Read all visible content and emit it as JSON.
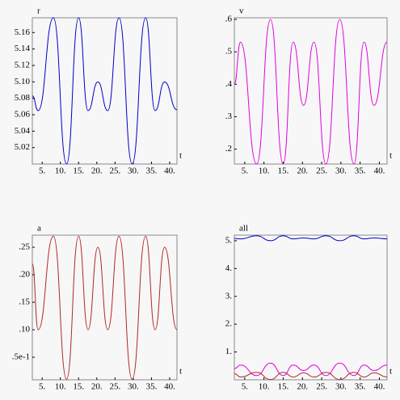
{
  "chart_data": [
    {
      "type": "line",
      "ylabel": "r",
      "xlabel": "t",
      "x": [
        2.3,
        3.9,
        8.1,
        11.7,
        15.0,
        17.6,
        20.3,
        23.0,
        26.1,
        29.7,
        33.4,
        36.0,
        38.6,
        42.0
      ],
      "series": [
        {
          "name": "r",
          "color": "#0000c8",
          "values": [
            5.083,
            5.065,
            5.178,
            5.0,
            5.178,
            5.065,
            5.1,
            5.065,
            5.178,
            5.0,
            5.178,
            5.065,
            5.1,
            5.066
          ]
        }
      ],
      "xlim": [
        2.3,
        42.0
      ],
      "ylim": [
        5.0,
        5.178
      ],
      "xticks": [
        {
          "value": 5,
          "label": "5."
        },
        {
          "value": 10,
          "label": "10."
        },
        {
          "value": 15,
          "label": "15."
        },
        {
          "value": 20,
          "label": "20."
        },
        {
          "value": 25,
          "label": "25."
        },
        {
          "value": 30,
          "label": "30."
        },
        {
          "value": 35,
          "label": "35."
        },
        {
          "value": 40,
          "label": "40."
        }
      ],
      "yticks": [
        5.02,
        5.04,
        5.06,
        5.08,
        {
          "value": 5.1,
          "label": "5.10"
        },
        5.12,
        5.14,
        5.16
      ]
    },
    {
      "type": "line",
      "ylabel": "v",
      "xlabel": "t",
      "x": [
        2.3,
        3.9,
        8.1,
        11.7,
        15.0,
        17.6,
        20.3,
        23.0,
        26.1,
        29.7,
        33.4,
        36.0,
        38.6,
        42.0
      ],
      "series": [
        {
          "name": "v",
          "color": "#e000e0",
          "values": [
            0.4,
            0.53,
            0.154,
            0.6,
            0.154,
            0.53,
            0.335,
            0.53,
            0.154,
            0.6,
            0.154,
            0.53,
            0.335,
            0.53
          ]
        }
      ],
      "xlim": [
        2.3,
        42.0
      ],
      "ylim": [
        0.154,
        0.605
      ],
      "xticks": [
        {
          "value": 5,
          "label": "5."
        },
        {
          "value": 10,
          "label": "10."
        },
        {
          "value": 15,
          "label": "15."
        },
        {
          "value": 20,
          "label": "20."
        },
        {
          "value": 25,
          "label": "25."
        },
        {
          "value": 30,
          "label": "30."
        },
        {
          "value": 35,
          "label": "35."
        },
        {
          "value": 40,
          "label": "40."
        }
      ],
      "yticks": [
        {
          "value": 0.2,
          "label": ".2"
        },
        {
          "value": 0.3,
          "label": ".3"
        },
        {
          "value": 0.4,
          "label": ".4"
        },
        {
          "value": 0.5,
          "label": ".5"
        },
        {
          "value": 0.6,
          "label": ".6"
        }
      ]
    },
    {
      "type": "line",
      "ylabel": "a",
      "xlabel": "t",
      "x": [
        2.3,
        3.9,
        8.1,
        11.7,
        15.0,
        17.6,
        20.3,
        23.0,
        26.1,
        29.7,
        33.4,
        36.0,
        38.6,
        42.0
      ],
      "series": [
        {
          "name": "a",
          "color": "#b02828",
          "values": [
            0.22,
            0.1,
            0.27,
            0.01,
            0.27,
            0.1,
            0.25,
            0.1,
            0.27,
            0.01,
            0.27,
            0.1,
            0.25,
            0.1
          ]
        }
      ],
      "xlim": [
        2.3,
        42.0
      ],
      "ylim": [
        0.009,
        0.272
      ],
      "xticks": [
        {
          "value": 5,
          "label": "5."
        },
        {
          "value": 10,
          "label": "10."
        },
        {
          "value": 15,
          "label": "15."
        },
        {
          "value": 20,
          "label": "20."
        },
        {
          "value": 25,
          "label": "25."
        },
        {
          "value": 30,
          "label": "30."
        },
        {
          "value": 35,
          "label": "35."
        },
        {
          "value": 40,
          "label": "40."
        }
      ],
      "yticks": [
        {
          "value": 0.05,
          "label": ".5e-1"
        },
        {
          "value": 0.1,
          "label": ".10"
        },
        {
          "value": 0.15,
          "label": ".15"
        },
        {
          "value": 0.2,
          "label": ".20"
        },
        {
          "value": 0.25,
          "label": ".25"
        }
      ]
    },
    {
      "type": "line",
      "ylabel": "all",
      "xlabel": "t",
      "x": [
        2.3,
        3.9,
        8.1,
        11.7,
        15.0,
        17.6,
        20.3,
        23.0,
        26.1,
        29.7,
        33.4,
        36.0,
        38.6,
        42.0
      ],
      "series": [
        {
          "name": "r",
          "color": "#0000c8",
          "values": [
            5.083,
            5.065,
            5.178,
            5.0,
            5.178,
            5.065,
            5.1,
            5.065,
            5.178,
            5.0,
            5.178,
            5.065,
            5.1,
            5.066
          ]
        },
        {
          "name": "v",
          "color": "#e000e0",
          "values": [
            0.4,
            0.53,
            0.154,
            0.6,
            0.154,
            0.53,
            0.335,
            0.53,
            0.154,
            0.6,
            0.154,
            0.53,
            0.335,
            0.53
          ]
        },
        {
          "name": "a",
          "color": "#b02828",
          "values": [
            0.22,
            0.1,
            0.27,
            0.01,
            0.27,
            0.1,
            0.25,
            0.1,
            0.27,
            0.01,
            0.27,
            0.1,
            0.25,
            0.1
          ]
        }
      ],
      "xlim": [
        2.3,
        42.0
      ],
      "ylim": [
        0.0,
        5.2
      ],
      "xticks": [
        {
          "value": 5,
          "label": "5."
        },
        {
          "value": 10,
          "label": "10."
        },
        {
          "value": 15,
          "label": "15."
        },
        {
          "value": 20,
          "label": "20."
        },
        {
          "value": 25,
          "label": "25."
        },
        {
          "value": 30,
          "label": "30."
        },
        {
          "value": 35,
          "label": "35."
        },
        {
          "value": 40,
          "label": "40."
        }
      ],
      "yticks": [
        {
          "value": 1,
          "label": "1."
        },
        {
          "value": 2,
          "label": "2."
        },
        {
          "value": 3,
          "label": "3."
        },
        {
          "value": 4,
          "label": "4."
        },
        {
          "value": 5,
          "label": "5."
        }
      ]
    }
  ]
}
